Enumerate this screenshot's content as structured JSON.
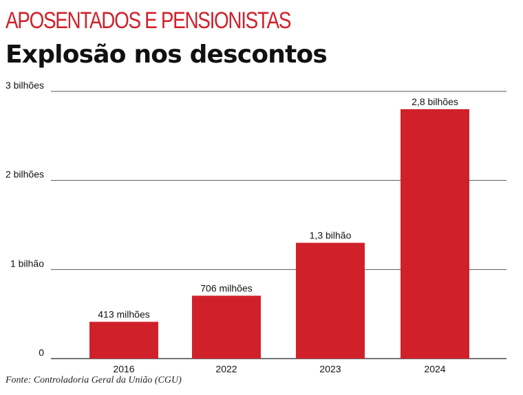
{
  "header": {
    "kicker": "APOSENTADOS E PENSIONISTAS",
    "title": "Explosão nos descontos"
  },
  "colors": {
    "accent": "#d0212b",
    "bar": "#d0212b",
    "gridline": "#555555",
    "text": "#111111"
  },
  "chart_data": {
    "type": "bar",
    "title": "",
    "xlabel": "",
    "ylabel": "",
    "categories": [
      "2016",
      "2022",
      "2023",
      "2024"
    ],
    "values": [
      413000000,
      706000000,
      1300000000,
      2800000000
    ],
    "data_labels": [
      "413 milhões",
      "706 milhões",
      "1,3 bilhão",
      "2,8 bilhões"
    ],
    "ylim": [
      0,
      3000000000
    ],
    "yticks": [
      {
        "value": 0,
        "label": "0"
      },
      {
        "value": 1000000000,
        "label": "1 bilhão"
      },
      {
        "value": 2000000000,
        "label": "2 bilhões"
      },
      {
        "value": 3000000000,
        "label": "3 bilhões"
      }
    ],
    "grid": true,
    "legend": "none"
  },
  "footer": {
    "source": "Fonte: Controladoria Geral da União (CGU)"
  }
}
